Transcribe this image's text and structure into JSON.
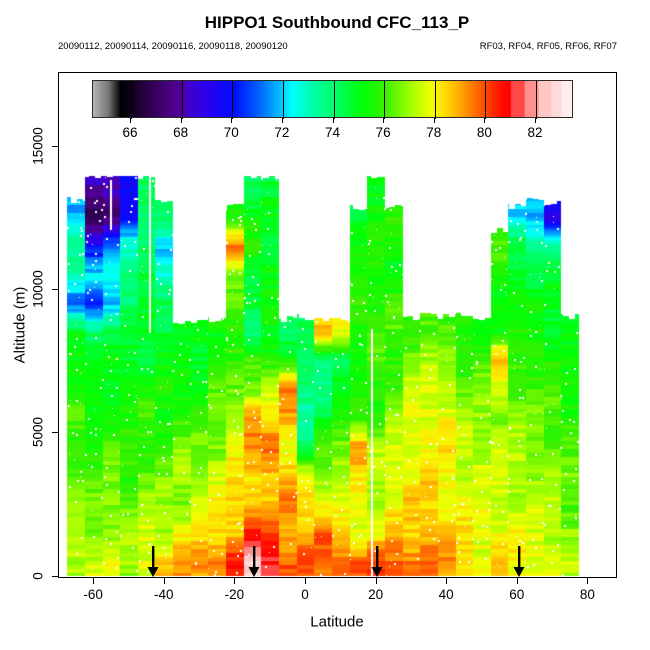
{
  "figure": {
    "title": "HIPPO1 Southbound CFC_113_P",
    "subtitle_left": "20090112, 20090114, 20090116, 20090118, 20090120",
    "subtitle_right": "RF03, RF04, RF05, RF06, RF07"
  },
  "chart_data": {
    "type": "heatmap",
    "title": "HIPPO1 Southbound CFC_113_P",
    "xlabel": "Latitude",
    "ylabel": "Altitude (m)",
    "x_ticks": [
      -60,
      -40,
      -20,
      0,
      20,
      40,
      60,
      80
    ],
    "y_ticks": [
      0,
      5000,
      10000,
      15000
    ],
    "xlim": [
      -70,
      88
    ],
    "ylim": [
      0,
      17600
    ],
    "grid": "off",
    "legend_position": "top-inside",
    "colorbar": {
      "ticks": [
        66,
        68,
        70,
        72,
        74,
        76,
        78,
        80,
        82
      ],
      "vmin": 64.5,
      "vmax": 83.5,
      "palette": [
        [
          64.5,
          "#B4B4B4"
        ],
        [
          65.1,
          "#787878"
        ],
        [
          65.6,
          "#000000"
        ],
        [
          66.6,
          "#2A0046"
        ],
        [
          67.6,
          "#4B0082"
        ],
        [
          68.1,
          "#5000A0"
        ],
        [
          68.2,
          "#4400C8"
        ],
        [
          69.1,
          "#2800F0"
        ],
        [
          70.1,
          "#000CFF"
        ],
        [
          71.1,
          "#0064FF"
        ],
        [
          72.0,
          "#00C8FF"
        ],
        [
          72.4,
          "#00FFFF"
        ],
        [
          73.2,
          "#00FFAA"
        ],
        [
          74.2,
          "#00FF5F"
        ],
        [
          75.2,
          "#00FF05"
        ],
        [
          76.1,
          "#3AF000"
        ],
        [
          77.1,
          "#A2FF00"
        ],
        [
          77.9,
          "#F2FF00"
        ],
        [
          78.4,
          "#FFE100"
        ],
        [
          79.2,
          "#FF9B00"
        ],
        [
          80.1,
          "#FF4400"
        ],
        [
          80.7,
          "#FF0E00"
        ],
        [
          81.05,
          "#FF0000"
        ],
        [
          81.1,
          "#FF4848"
        ],
        [
          81.6,
          "#FF4848"
        ],
        [
          81.65,
          "#FF9090"
        ],
        [
          82.15,
          "#FF9090"
        ],
        [
          82.2,
          "#FFC6C6"
        ],
        [
          82.65,
          "#FFC6C6"
        ],
        [
          82.7,
          "#FFDADA"
        ],
        [
          83.05,
          "#FFDADA"
        ],
        [
          83.1,
          "#FFECEC"
        ],
        [
          83.5,
          "#FFECEC"
        ]
      ]
    },
    "profile_arrows_lat": [
      -43,
      -14.5,
      20.5,
      60.5
    ],
    "heatmap": {
      "lat_centers": [
        -65,
        -60,
        -55,
        -50,
        -45,
        -40,
        -35,
        -30,
        -25,
        -20,
        -15,
        -10,
        -5,
        0,
        5,
        10,
        15,
        20,
        25,
        30,
        35,
        40,
        45,
        50,
        55,
        60,
        65,
        70,
        75
      ],
      "alt_centers": [
        500,
        1500,
        2500,
        3500,
        4500,
        5500,
        6500,
        7500,
        8500,
        9500,
        10500,
        11500,
        12500,
        13500
      ],
      "values": [
        [
          77.5,
          77.5,
          77.5,
          77,
          78,
          78.5,
          79,
          79.5,
          79.8,
          80.5,
          82.5,
          81.5,
          80,
          79.8,
          79.8,
          79.8,
          79.8,
          79.8,
          79.8,
          79.8,
          79.8,
          79,
          78.5,
          78,
          78.5,
          78,
          78,
          77.5,
          77
        ],
        [
          77,
          77,
          77,
          77,
          77.5,
          77.5,
          78,
          78,
          78.5,
          79,
          80.5,
          80,
          79,
          79,
          79.5,
          78.5,
          78,
          78,
          78.5,
          78.5,
          79,
          78.5,
          78,
          78,
          78,
          78,
          77.5,
          77.5,
          77
        ],
        [
          76.5,
          76.5,
          77,
          76.5,
          77,
          77,
          77,
          77.5,
          78,
          78.5,
          79,
          78.5,
          79.5,
          78.5,
          78,
          77.5,
          77.5,
          77.5,
          78,
          78.5,
          78.5,
          78,
          78,
          77.5,
          77.5,
          77.5,
          77.5,
          77,
          76.5
        ],
        [
          76.5,
          76,
          76.5,
          76,
          76.5,
          76.5,
          77,
          77,
          77.5,
          78,
          78.5,
          79,
          78.5,
          78,
          77,
          77.5,
          78,
          77,
          78,
          78,
          78.5,
          78,
          77.5,
          77.5,
          77.5,
          77.5,
          77,
          77,
          76.5
        ],
        [
          76,
          76,
          76,
          76,
          76,
          76,
          76.5,
          76.5,
          77,
          78,
          79,
          80,
          78,
          74,
          76,
          77,
          79.5,
          77,
          77.5,
          78,
          78,
          78,
          77.5,
          77.5,
          77.5,
          77,
          77,
          76.5,
          76
        ],
        [
          76,
          75.5,
          75.5,
          75.5,
          76,
          75.5,
          76,
          76,
          76.5,
          77.5,
          79.5,
          78,
          79,
          73.5,
          74.5,
          75.5,
          76,
          76,
          77,
          77.5,
          78,
          78,
          77,
          77,
          77,
          77,
          76.5,
          76.5,
          76
        ],
        [
          75.5,
          75,
          75,
          75.5,
          75.5,
          75.5,
          75.5,
          75.5,
          76,
          76.5,
          77,
          77.5,
          79.5,
          74,
          74,
          75,
          75.5,
          76,
          76.5,
          77.5,
          77.5,
          77.5,
          76.5,
          76.5,
          77.5,
          76.5,
          76,
          76,
          75.5
        ],
        [
          75.5,
          75,
          75,
          75,
          75,
          75,
          75,
          75,
          75.5,
          75.5,
          76,
          76,
          75.5,
          74,
          74,
          74.5,
          75,
          76,
          76,
          77,
          77,
          77,
          76,
          76.5,
          79,
          76,
          76,
          75.5,
          75
        ],
        [
          75,
          74.5,
          74.5,
          74.5,
          75,
          75,
          75,
          75,
          75.5,
          76,
          73.5,
          75,
          74.5,
          74.5,
          78.5,
          78,
          76,
          76,
          76,
          76,
          76.5,
          76,
          75.5,
          75.5,
          75.5,
          75.5,
          75.5,
          75,
          75
        ],
        [
          70.5,
          70.5,
          72,
          74,
          74.5,
          74.5,
          null,
          null,
          null,
          76.5,
          75,
          75,
          null,
          null,
          null,
          null,
          76,
          76,
          76,
          null,
          null,
          null,
          null,
          null,
          75.5,
          75.5,
          75,
          75,
          null
        ],
        [
          73.5,
          72,
          72.5,
          74,
          74.5,
          72.5,
          null,
          null,
          null,
          76.5,
          75,
          75.5,
          null,
          null,
          null,
          null,
          75.5,
          75.5,
          75.5,
          null,
          null,
          null,
          null,
          null,
          75.5,
          75,
          74.5,
          74.5,
          null
        ],
        [
          74,
          70,
          71,
          73,
          74.5,
          72,
          null,
          null,
          null,
          79.5,
          75.5,
          75,
          null,
          null,
          null,
          null,
          75.5,
          75.5,
          75.5,
          null,
          null,
          null,
          null,
          null,
          76,
          74.5,
          74,
          73.5,
          null
        ],
        [
          71.5,
          67,
          67.5,
          69.5,
          74,
          74.5,
          null,
          null,
          null,
          76,
          75,
          75,
          null,
          null,
          null,
          null,
          75,
          75.5,
          75.5,
          null,
          null,
          null,
          null,
          null,
          null,
          72,
          71.5,
          69.5,
          null
        ],
        [
          null,
          68,
          68.5,
          70,
          74,
          null,
          null,
          null,
          null,
          null,
          74.5,
          74.5,
          null,
          null,
          null,
          null,
          null,
          75.5,
          null,
          null,
          null,
          null,
          null,
          null,
          null,
          null,
          null,
          null,
          null
        ]
      ],
      "gaps": [
        {
          "lat": 18.8,
          "alt_from": 0,
          "alt_to": 8600
        },
        {
          "lat": -44.3,
          "alt_from": 8500,
          "alt_to": 13900
        },
        {
          "lat": -55.3,
          "alt_from": 12100,
          "alt_to": 13800
        }
      ]
    }
  }
}
